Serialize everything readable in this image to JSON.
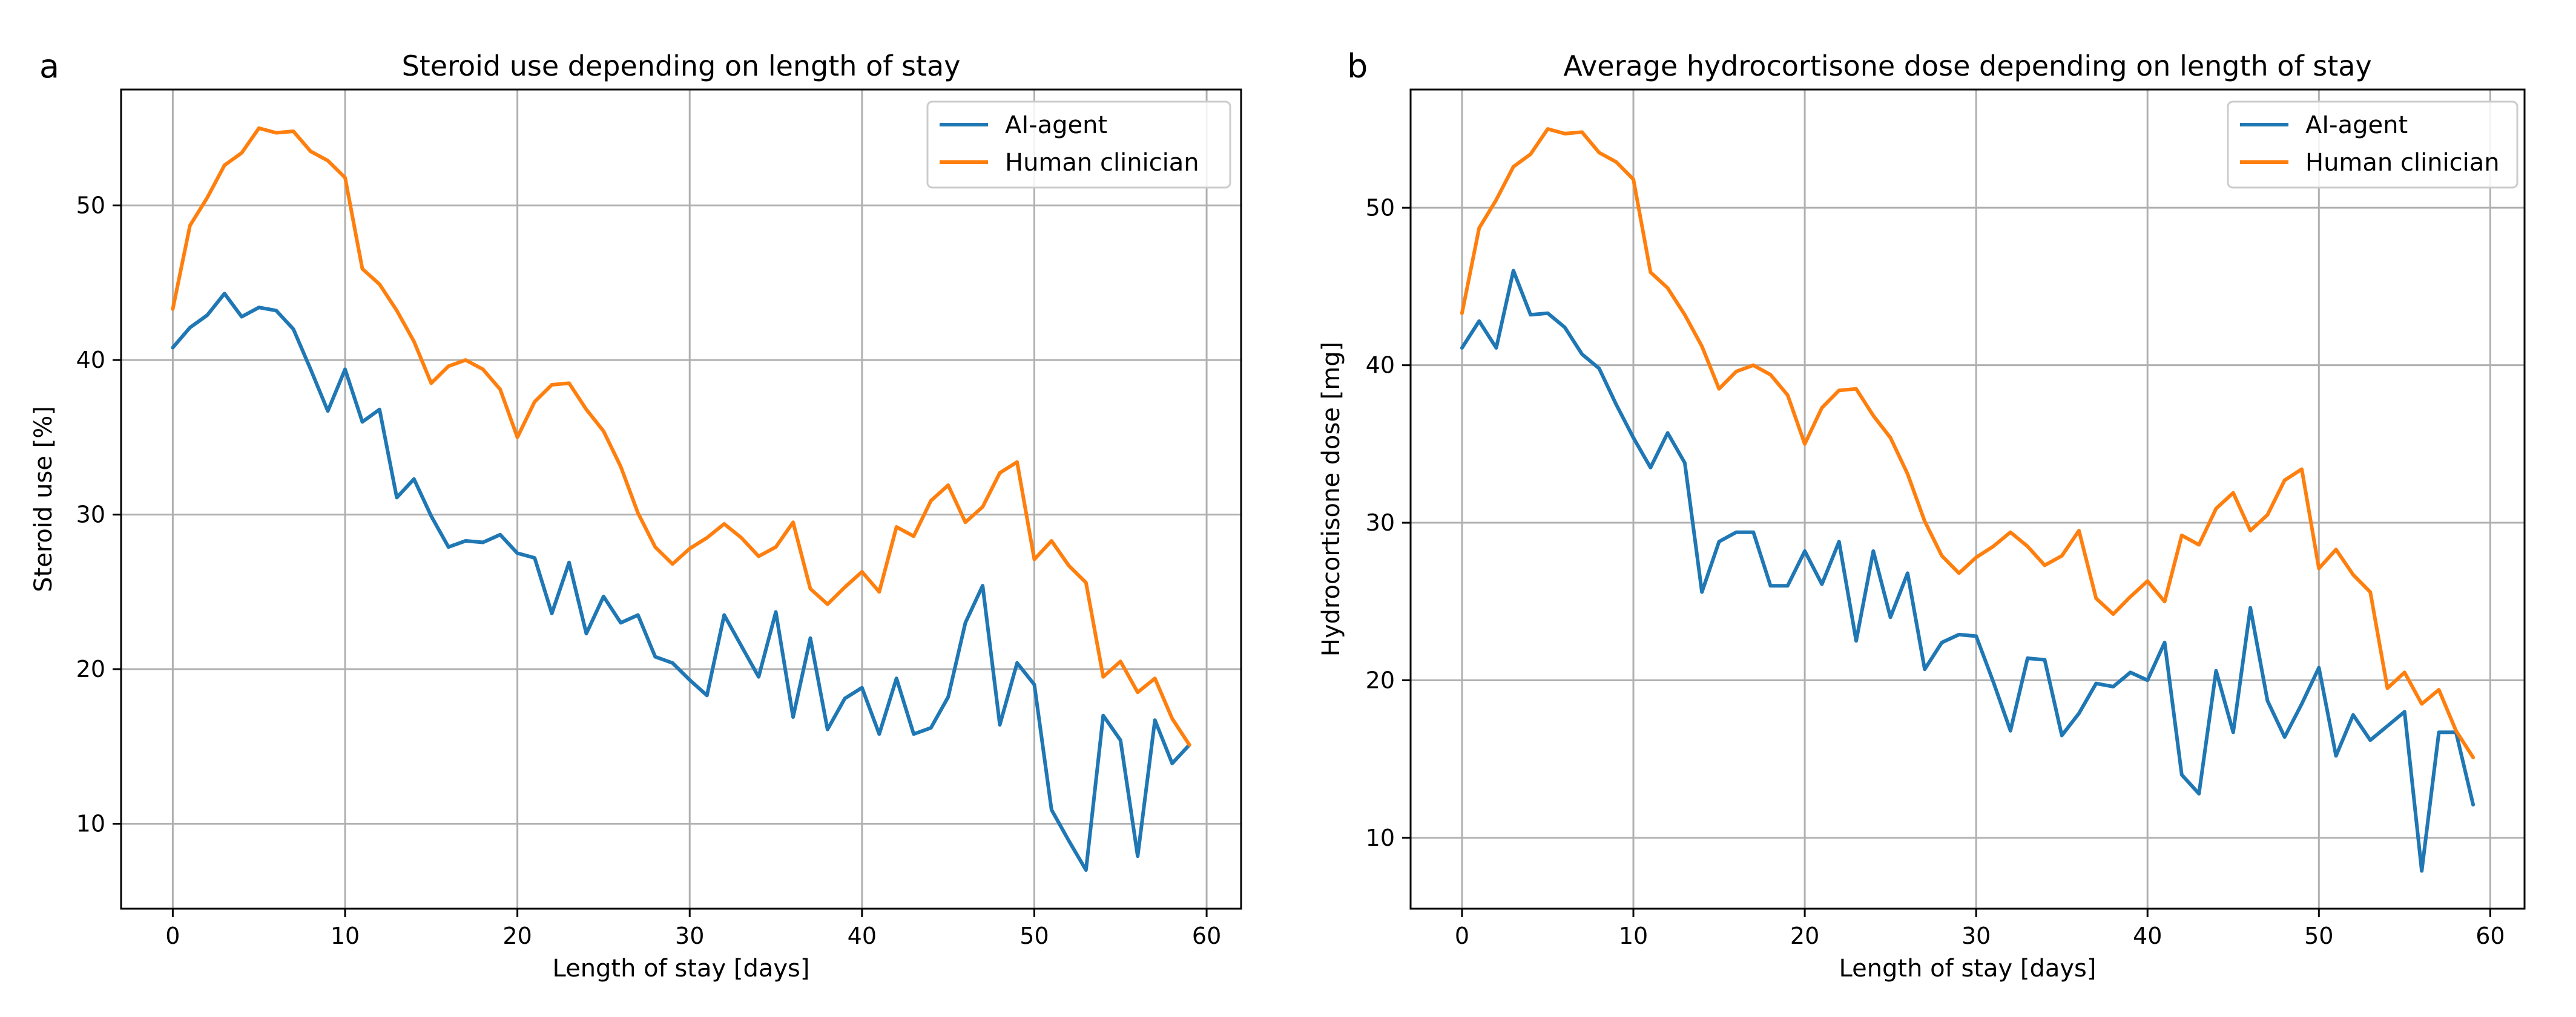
{
  "chart_data": [
    {
      "panel": "a",
      "type": "line",
      "title": "Steroid use depending on length of stay",
      "xlabel": "Length of stay [days]",
      "ylabel": "Steroid use [%]",
      "xlim": [
        -3,
        62
      ],
      "ylim": [
        4.5,
        57.5
      ],
      "xticks": [
        0,
        10,
        20,
        30,
        40,
        50,
        60
      ],
      "yticks": [
        10,
        20,
        30,
        40,
        50
      ],
      "grid": true,
      "legend": "top-right",
      "x": [
        0,
        1,
        2,
        3,
        4,
        5,
        6,
        7,
        8,
        9,
        10,
        11,
        12,
        13,
        14,
        15,
        16,
        17,
        18,
        19,
        20,
        21,
        22,
        23,
        24,
        25,
        26,
        27,
        28,
        29,
        30,
        31,
        32,
        33,
        34,
        35,
        36,
        37,
        38,
        39,
        40,
        41,
        42,
        43,
        44,
        45,
        46,
        47,
        48,
        49,
        50,
        51,
        52,
        53,
        54,
        55,
        56,
        57,
        58,
        59
      ],
      "series": [
        {
          "name": "AI-agent",
          "color": "#1f77b4",
          "values": [
            40.8,
            42.1,
            42.9,
            44.3,
            42.8,
            43.4,
            43.2,
            42.0,
            39.4,
            36.7,
            39.4,
            36.0,
            36.8,
            31.1,
            32.3,
            29.9,
            27.9,
            28.3,
            28.2,
            28.7,
            27.5,
            27.2,
            23.6,
            26.9,
            22.3,
            24.7,
            23.0,
            23.5,
            20.8,
            20.4,
            19.3,
            18.3,
            23.5,
            21.5,
            19.5,
            23.7,
            16.9,
            22.0,
            16.1,
            18.1,
            18.8,
            15.8,
            19.4,
            15.8,
            16.2,
            18.2,
            23.0,
            25.4,
            16.4,
            20.4,
            19.0,
            10.9,
            8.9,
            7.0,
            17.0,
            15.4,
            7.9,
            16.7,
            13.9,
            15.1
          ]
        },
        {
          "name": "Human clinician",
          "color": "#ff7f0e",
          "values": [
            43.3,
            48.7,
            50.5,
            52.6,
            53.4,
            55.0,
            54.7,
            54.8,
            53.5,
            52.9,
            51.8,
            45.9,
            44.9,
            43.2,
            41.2,
            38.5,
            39.6,
            40.0,
            39.4,
            38.1,
            35.0,
            37.3,
            38.4,
            38.5,
            36.8,
            35.4,
            33.1,
            30.1,
            27.9,
            26.8,
            27.8,
            28.5,
            29.4,
            28.5,
            27.3,
            27.9,
            29.5,
            25.2,
            24.2,
            25.3,
            26.3,
            25.0,
            29.2,
            28.6,
            30.9,
            31.9,
            29.5,
            30.5,
            32.7,
            33.4,
            27.1,
            28.3,
            26.7,
            25.6,
            19.5,
            20.5,
            18.5,
            19.4,
            16.8,
            15.1
          ]
        }
      ]
    },
    {
      "panel": "b",
      "type": "line",
      "title": "Average hydrocortisone dose depending on length of stay",
      "xlabel": "Length of stay [days]",
      "ylabel": "Hydrocortisone dose [mg]",
      "xlim": [
        -3,
        62
      ],
      "ylim": [
        5.5,
        57.5
      ],
      "xticks": [
        0,
        10,
        20,
        30,
        40,
        50,
        60
      ],
      "yticks": [
        10,
        20,
        30,
        40,
        50
      ],
      "grid": true,
      "legend": "top-right",
      "x": [
        0,
        1,
        2,
        3,
        4,
        5,
        6,
        7,
        8,
        9,
        10,
        11,
        12,
        13,
        14,
        15,
        16,
        17,
        18,
        19,
        20,
        21,
        22,
        23,
        24,
        25,
        26,
        27,
        28,
        29,
        30,
        31,
        32,
        33,
        34,
        35,
        36,
        37,
        38,
        39,
        40,
        41,
        42,
        43,
        44,
        45,
        46,
        47,
        48,
        49,
        50,
        51,
        52,
        53,
        54,
        55,
        56,
        57,
        58,
        59
      ],
      "series": [
        {
          "name": "AI-agent",
          "color": "#1f77b4",
          "values": [
            41.1,
            42.8,
            41.1,
            46.0,
            43.2,
            43.3,
            42.4,
            40.7,
            39.8,
            37.5,
            35.4,
            33.5,
            35.7,
            33.8,
            25.6,
            28.8,
            29.4,
            29.4,
            26.0,
            26.0,
            28.2,
            26.1,
            28.8,
            22.5,
            28.2,
            24.0,
            26.8,
            20.7,
            22.4,
            22.9,
            22.8,
            19.9,
            16.8,
            21.4,
            21.3,
            16.5,
            17.9,
            19.8,
            19.6,
            20.5,
            20.0,
            22.4,
            14.0,
            12.8,
            20.6,
            16.7,
            24.6,
            18.7,
            16.4,
            18.5,
            20.8,
            15.2,
            17.8,
            16.2,
            17.1,
            18.0,
            7.9,
            16.7,
            16.7,
            12.1
          ]
        },
        {
          "name": "Human clinician",
          "color": "#ff7f0e",
          "values": [
            43.3,
            48.7,
            50.5,
            52.6,
            53.4,
            55.0,
            54.7,
            54.8,
            53.5,
            52.9,
            51.8,
            45.9,
            44.9,
            43.2,
            41.2,
            38.5,
            39.6,
            40.0,
            39.4,
            38.1,
            35.0,
            37.3,
            38.4,
            38.5,
            36.8,
            35.4,
            33.1,
            30.1,
            27.9,
            26.8,
            27.8,
            28.5,
            29.4,
            28.5,
            27.3,
            27.9,
            29.5,
            25.2,
            24.2,
            25.3,
            26.3,
            25.0,
            29.2,
            28.6,
            30.9,
            31.9,
            29.5,
            30.5,
            32.7,
            33.4,
            27.1,
            28.3,
            26.7,
            25.6,
            19.5,
            20.5,
            18.5,
            19.4,
            16.8,
            15.1
          ]
        }
      ]
    }
  ]
}
